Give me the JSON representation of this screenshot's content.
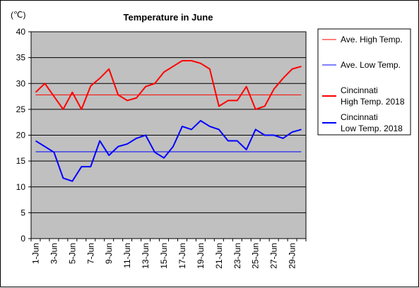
{
  "chart_data": {
    "type": "line",
    "title": "Temperature in June",
    "unit_label": "(℃)",
    "ylim": [
      0,
      40
    ],
    "y_ticks": [
      "0",
      "5",
      "10",
      "15",
      "20",
      "25",
      "30",
      "35",
      "40"
    ],
    "categories": [
      "1-Jun",
      "2-Jun",
      "3-Jun",
      "4-Jun",
      "5-Jun",
      "6-Jun",
      "7-Jun",
      "8-Jun",
      "9-Jun",
      "10-Jun",
      "11-Jun",
      "12-Jun",
      "13-Jun",
      "14-Jun",
      "15-Jun",
      "16-Jun",
      "17-Jun",
      "18-Jun",
      "19-Jun",
      "20-Jun",
      "21-Jun",
      "22-Jun",
      "23-Jun",
      "24-Jun",
      "25-Jun",
      "26-Jun",
      "27-Jun",
      "28-Jun",
      "29-Jun",
      "30-Jun"
    ],
    "x_tick_labels": [
      "1-Jun",
      "3-Jun",
      "5-Jun",
      "7-Jun",
      "9-Jun",
      "11-Jun",
      "13-Jun",
      "15-Jun",
      "17-Jun",
      "19-Jun",
      "21-Jun",
      "23-Jun",
      "25-Jun",
      "27-Jun",
      "29-Jun"
    ],
    "grid": "horizontal",
    "legend_position": "right",
    "plot_background": "#c0c0c0",
    "series": [
      {
        "name": "Ave. High Temp.",
        "color": "#ff0000",
        "line": "thin",
        "values": [
          27.8,
          27.8,
          27.8,
          27.8,
          27.8,
          27.8,
          27.8,
          27.8,
          27.8,
          27.8,
          27.8,
          27.8,
          27.8,
          27.8,
          27.8,
          27.8,
          27.8,
          27.8,
          27.8,
          27.8,
          27.8,
          27.8,
          27.8,
          27.8,
          27.8,
          27.8,
          27.8,
          27.8,
          27.8,
          27.8
        ]
      },
      {
        "name": "Ave. Low Temp.",
        "color": "#0000ff",
        "line": "thin",
        "values": [
          16.8,
          16.8,
          16.8,
          16.8,
          16.8,
          16.8,
          16.8,
          16.8,
          16.8,
          16.8,
          16.8,
          16.8,
          16.8,
          16.8,
          16.8,
          16.8,
          16.8,
          16.8,
          16.8,
          16.8,
          16.8,
          16.8,
          16.8,
          16.8,
          16.8,
          16.8,
          16.8,
          16.8,
          16.8,
          16.8
        ]
      },
      {
        "name": "Cincinnati\nHigh Temp. 2018",
        "color": "#ff0000",
        "line": "thick",
        "values": [
          28.3,
          30.0,
          27.5,
          25.0,
          28.3,
          25.0,
          29.5,
          31.0,
          32.8,
          27.8,
          26.7,
          27.2,
          29.4,
          30.0,
          32.2,
          33.3,
          34.4,
          34.4,
          33.9,
          32.8,
          25.6,
          26.7,
          26.7,
          29.4,
          25.0,
          25.6,
          28.9,
          31.0,
          32.8,
          33.3
        ]
      },
      {
        "name": "Cincinnati\nLow Temp. 2018",
        "color": "#0000ff",
        "line": "thick",
        "values": [
          18.9,
          17.8,
          16.7,
          11.7,
          11.1,
          13.9,
          13.9,
          18.9,
          16.1,
          17.8,
          18.3,
          19.4,
          20.0,
          16.7,
          15.6,
          17.8,
          21.7,
          21.1,
          22.8,
          21.7,
          21.1,
          18.9,
          18.9,
          17.2,
          21.1,
          20.0,
          20.0,
          19.4,
          20.6,
          21.1
        ]
      }
    ]
  }
}
